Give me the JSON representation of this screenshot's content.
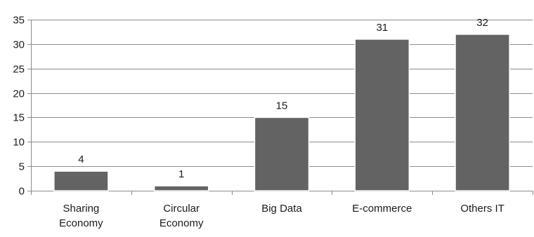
{
  "chart_data": {
    "type": "bar",
    "categories": [
      [
        "Sharing",
        "Economy"
      ],
      [
        "Circular",
        "Economy"
      ],
      [
        "Big Data"
      ],
      [
        "E-commerce"
      ],
      [
        "Others IT"
      ]
    ],
    "values": [
      4,
      1,
      15,
      31,
      32
    ],
    "data_labels": [
      "4",
      "1",
      "15",
      "31",
      "32"
    ],
    "y_ticks": [
      "0",
      "5",
      "10",
      "15",
      "20",
      "25",
      "30",
      "35"
    ],
    "ylim": [
      0,
      35
    ],
    "title": "",
    "xlabel": "",
    "ylabel": "",
    "grid": true,
    "legend": "none",
    "colors": {
      "bar": "#636363",
      "bar_edge": "#ffffff",
      "grid": "#8c8c8c"
    }
  }
}
